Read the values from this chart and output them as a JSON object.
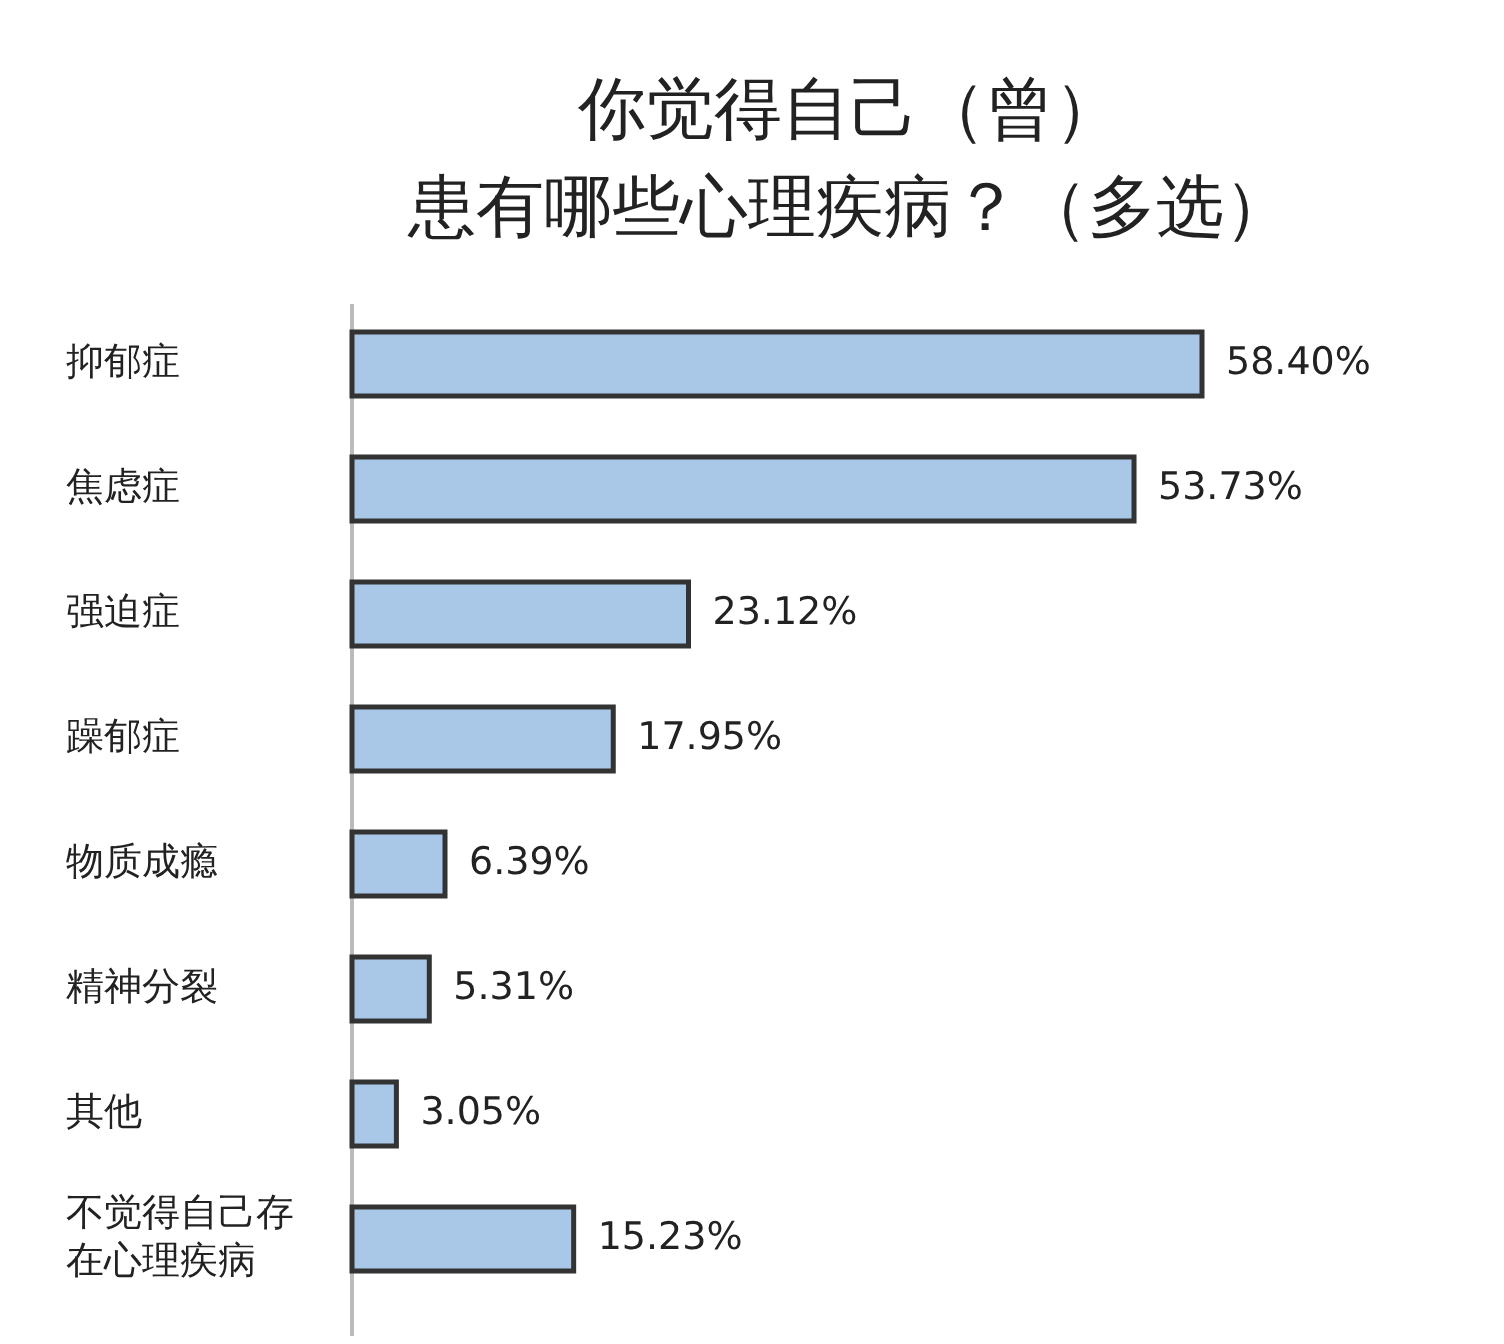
{
  "chart_data": {
    "type": "bar",
    "orientation": "horizontal",
    "title": "你觉得自己（曾）",
    "subtitle": "患有哪些心理疾病？（多选）",
    "categories": [
      "抑郁症",
      "焦虑症",
      "强迫症",
      "躁郁症",
      "物质成瘾",
      "精神分裂",
      "其他",
      "不觉得自己存在心理疾病"
    ],
    "values": [
      58.4,
      53.73,
      23.12,
      17.95,
      6.39,
      5.31,
      3.05,
      15.23
    ],
    "value_labels": [
      "58.40%",
      "53.73%",
      "23.12%",
      "17.95%",
      "6.39%",
      "5.31%",
      "3.05%",
      "15.23%"
    ],
    "color": "#a9c8e8"
  }
}
